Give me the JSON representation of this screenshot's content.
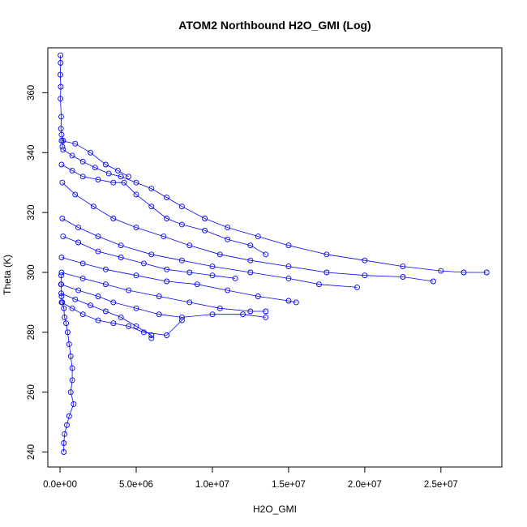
{
  "chart_data": {
    "type": "scatter",
    "title": "ATOM2 Northbound H2O_GMI (Log)",
    "xlabel": "H2O_GMI",
    "ylabel": "Theta (K)",
    "xlim": [
      -800000,
      29000000
    ],
    "ylim": [
      235,
      375
    ],
    "x_ticks": [
      0,
      5000000,
      10000000,
      15000000,
      20000000,
      25000000
    ],
    "x_tick_labels": [
      "0.0e+00",
      "5.0e+06",
      "1.0e+07",
      "1.5e+07",
      "2.0e+07",
      "2.5e+07"
    ],
    "y_ticks": [
      240,
      260,
      280,
      300,
      320,
      340,
      360
    ],
    "y_tick_labels": [
      "240",
      "260",
      "280",
      "300",
      "320",
      "340",
      "360"
    ],
    "marker": "open-circle",
    "color": "#0000ff",
    "connect_points": true,
    "series": [
      {
        "values": [
          [
            30000,
            372.5
          ],
          [
            40000,
            370
          ],
          [
            20000,
            366
          ],
          [
            50000,
            362
          ],
          [
            30000,
            358
          ],
          [
            80000,
            352
          ],
          [
            60000,
            348
          ],
          [
            100000,
            346
          ],
          [
            200000,
            344
          ],
          [
            150000,
            342
          ]
        ]
      },
      {
        "values": [
          [
            200000,
            341
          ],
          [
            800000,
            339
          ],
          [
            1500000,
            337
          ],
          [
            2300000,
            335
          ],
          [
            3200000,
            333
          ],
          [
            4000000,
            332
          ],
          [
            5000000,
            330
          ],
          [
            6000000,
            328
          ],
          [
            7000000,
            325
          ],
          [
            8000000,
            322
          ],
          [
            9500000,
            318
          ],
          [
            11000000,
            315
          ],
          [
            13000000,
            312
          ],
          [
            15000000,
            309
          ],
          [
            17500000,
            306
          ],
          [
            20000000,
            304
          ],
          [
            22500000,
            302
          ],
          [
            25000000,
            300.5
          ],
          [
            26500000,
            300
          ],
          [
            28000000,
            300
          ]
        ]
      },
      {
        "values": [
          [
            150000,
            330
          ],
          [
            1000000,
            326
          ],
          [
            2200000,
            322
          ],
          [
            3500000,
            318
          ],
          [
            5000000,
            315
          ],
          [
            6800000,
            312
          ],
          [
            8500000,
            309
          ],
          [
            10500000,
            306
          ],
          [
            12500000,
            304
          ],
          [
            15000000,
            302
          ],
          [
            17500000,
            300
          ],
          [
            20000000,
            299
          ],
          [
            22500000,
            298.5
          ],
          [
            24500000,
            297
          ]
        ]
      },
      {
        "values": [
          [
            150000,
            318
          ],
          [
            1200000,
            315
          ],
          [
            2500000,
            312
          ],
          [
            4000000,
            309
          ],
          [
            6000000,
            306
          ],
          [
            8000000,
            304
          ],
          [
            10000000,
            302
          ],
          [
            12500000,
            300
          ],
          [
            15000000,
            298
          ],
          [
            17000000,
            296
          ],
          [
            19500000,
            295
          ]
        ]
      },
      {
        "values": [
          [
            100000,
            305
          ],
          [
            1500000,
            303
          ],
          [
            3000000,
            301
          ],
          [
            5000000,
            299
          ],
          [
            7000000,
            297
          ],
          [
            9000000,
            296
          ],
          [
            11000000,
            294
          ],
          [
            13000000,
            292
          ],
          [
            15000000,
            290.5
          ],
          [
            15500000,
            290
          ]
        ]
      },
      {
        "values": [
          [
            100000,
            300
          ],
          [
            1500000,
            298
          ],
          [
            3000000,
            296
          ],
          [
            4500000,
            294
          ],
          [
            6500000,
            292
          ],
          [
            8500000,
            290
          ],
          [
            10500000,
            288
          ],
          [
            12500000,
            287
          ],
          [
            13500000,
            287
          ]
        ]
      },
      {
        "values": [
          [
            80000,
            296
          ],
          [
            1200000,
            294
          ],
          [
            2500000,
            292
          ],
          [
            3500000,
            290
          ],
          [
            5000000,
            288
          ],
          [
            6500000,
            286
          ],
          [
            8000000,
            285
          ],
          [
            10000000,
            286
          ],
          [
            12000000,
            286
          ],
          [
            13500000,
            285
          ]
        ]
      },
      {
        "values": [
          [
            80000,
            293
          ],
          [
            1000000,
            291
          ],
          [
            2000000,
            289
          ],
          [
            3000000,
            287
          ],
          [
            4000000,
            285
          ],
          [
            5000000,
            282
          ],
          [
            6000000,
            279
          ],
          [
            6000000,
            278
          ]
        ]
      },
      {
        "values": [
          [
            100000,
            290
          ],
          [
            800000,
            288
          ],
          [
            1500000,
            286
          ],
          [
            2500000,
            284
          ],
          [
            3500000,
            283
          ],
          [
            4500000,
            282
          ],
          [
            5500000,
            280
          ],
          [
            7000000,
            279
          ],
          [
            8000000,
            284
          ]
        ]
      },
      {
        "values": [
          [
            100000,
            336
          ],
          [
            800000,
            334
          ],
          [
            1500000,
            332
          ],
          [
            2500000,
            331
          ],
          [
            3500000,
            330
          ],
          [
            4200000,
            330
          ],
          [
            5000000,
            326
          ],
          [
            6000000,
            322
          ],
          [
            7000000,
            318
          ],
          [
            8000000,
            316
          ],
          [
            9500000,
            314
          ],
          [
            11000000,
            311
          ],
          [
            12500000,
            309
          ],
          [
            13500000,
            306
          ]
        ]
      },
      {
        "values": [
          [
            100000,
            344
          ],
          [
            1000000,
            343
          ],
          [
            2000000,
            340
          ],
          [
            3000000,
            336
          ],
          [
            3800000,
            334
          ],
          [
            4500000,
            332
          ]
        ]
      },
      {
        "values": [
          [
            200000,
            312
          ],
          [
            1200000,
            310
          ],
          [
            2500000,
            307
          ],
          [
            4000000,
            305
          ],
          [
            5500000,
            303
          ],
          [
            7000000,
            301
          ],
          [
            8500000,
            300
          ],
          [
            10000000,
            299
          ],
          [
            11500000,
            298
          ]
        ]
      },
      {
        "values": [
          [
            80000,
            299
          ],
          [
            60000,
            296
          ],
          [
            100000,
            292
          ],
          [
            150000,
            290
          ],
          [
            250000,
            288
          ],
          [
            300000,
            285
          ],
          [
            400000,
            283
          ],
          [
            500000,
            280
          ],
          [
            600000,
            276
          ],
          [
            700000,
            272
          ],
          [
            800000,
            268
          ],
          [
            800000,
            264
          ],
          [
            700000,
            260
          ],
          [
            900000,
            256
          ],
          [
            600000,
            252
          ],
          [
            450000,
            249
          ],
          [
            300000,
            246
          ],
          [
            250000,
            243
          ],
          [
            250000,
            240
          ]
        ]
      }
    ]
  }
}
